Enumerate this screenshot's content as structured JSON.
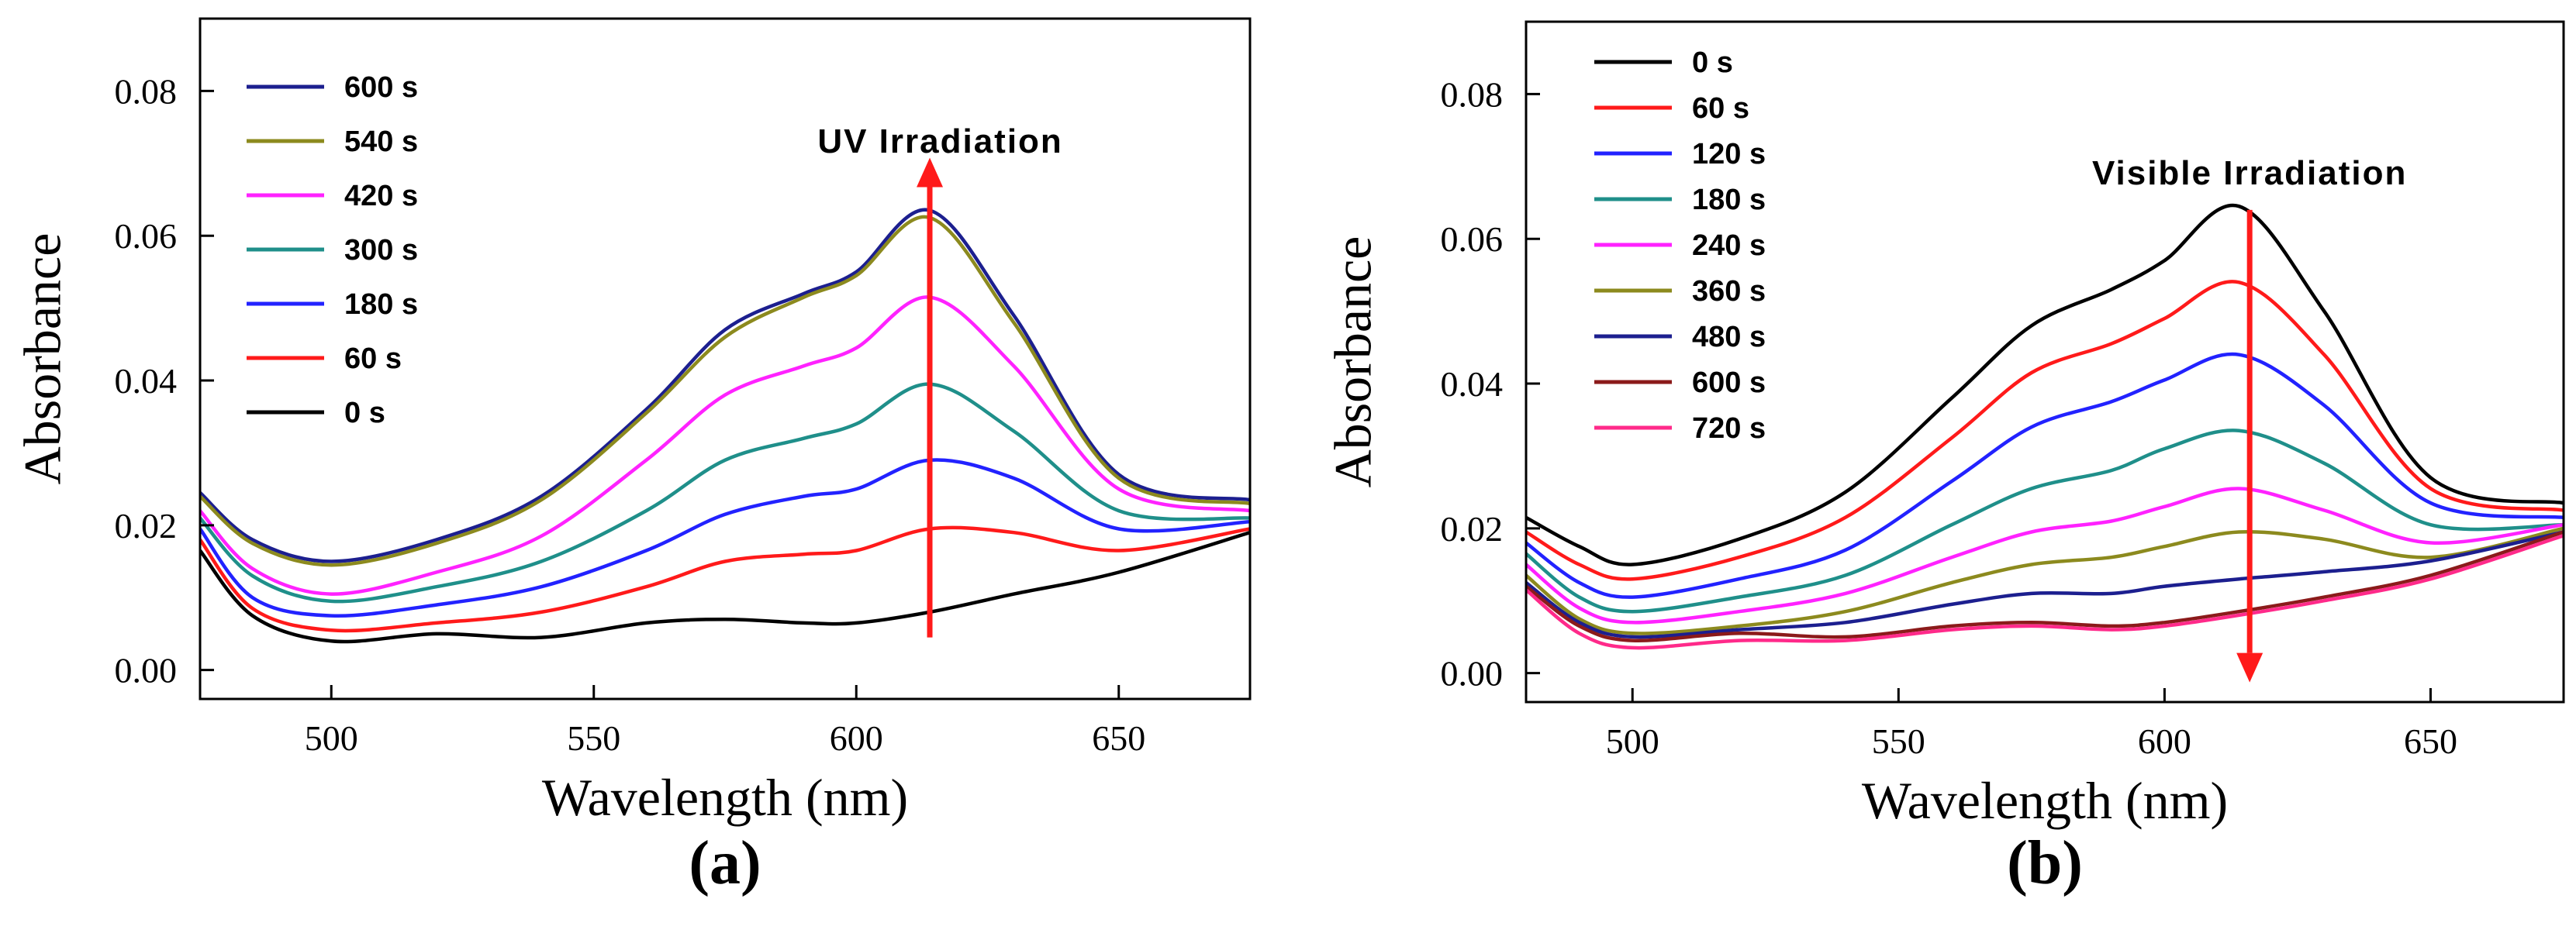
{
  "chart_data": [
    {
      "type": "line",
      "panel_label": "(a)",
      "xlabel": "Wavelength (nm)",
      "ylabel": "Absorbance",
      "xlim": [
        475,
        675
      ],
      "ylim": [
        -0.004,
        0.09
      ],
      "xticks": [
        500,
        550,
        600,
        650
      ],
      "xtick_labels": [
        "500",
        "550",
        "600",
        "650"
      ],
      "yticks": [
        0.0,
        0.02,
        0.04,
        0.06,
        0.08
      ],
      "ytick_labels": [
        "0.00",
        "0.02",
        "0.04",
        "0.06",
        "0.08"
      ],
      "legend_position": "top-left",
      "annotation": {
        "text": "UV Irradiation",
        "arrow_direction": "up",
        "arrow_x": 614,
        "arrow_from": 0.0045,
        "arrow_to": 0.0695,
        "text_x": 616,
        "text_y": 0.0715
      },
      "x": [
        475,
        485,
        500,
        520,
        540,
        560,
        575,
        590,
        600,
        614,
        630,
        650,
        675
      ],
      "series": [
        {
          "name": "600 s",
          "color": "#1c1f8f",
          "values": [
            0.0245,
            0.018,
            0.015,
            0.018,
            0.024,
            0.036,
            0.047,
            0.052,
            0.055,
            0.0635,
            0.049,
            0.027,
            0.0235
          ]
        },
        {
          "name": "540 s",
          "color": "#8c8a1e",
          "values": [
            0.024,
            0.0175,
            0.0145,
            0.0175,
            0.0235,
            0.0355,
            0.046,
            0.0515,
            0.0545,
            0.0625,
            0.048,
            0.0265,
            0.023
          ]
        },
        {
          "name": "420 s",
          "color": "#ff22ff",
          "values": [
            0.022,
            0.014,
            0.0105,
            0.0135,
            0.0185,
            0.029,
            0.038,
            0.042,
            0.0445,
            0.0515,
            0.042,
            0.025,
            0.022
          ]
        },
        {
          "name": "300 s",
          "color": "#1f8f8a",
          "values": [
            0.021,
            0.013,
            0.0095,
            0.0115,
            0.015,
            0.022,
            0.029,
            0.032,
            0.034,
            0.0395,
            0.033,
            0.022,
            0.021
          ]
        },
        {
          "name": "180 s",
          "color": "#2222ff",
          "values": [
            0.0195,
            0.01,
            0.0075,
            0.009,
            0.0115,
            0.0165,
            0.0215,
            0.024,
            0.025,
            0.029,
            0.0265,
            0.0195,
            0.0205
          ]
        },
        {
          "name": "60 s",
          "color": "#ff1a1a",
          "values": [
            0.018,
            0.0085,
            0.0055,
            0.0065,
            0.008,
            0.0115,
            0.015,
            0.016,
            0.0165,
            0.0195,
            0.019,
            0.0165,
            0.0195
          ]
        },
        {
          "name": "0 s",
          "color": "#000000",
          "values": [
            0.0165,
            0.0075,
            0.004,
            0.005,
            0.0045,
            0.0065,
            0.007,
            0.0065,
            0.0065,
            0.008,
            0.0105,
            0.0135,
            0.019
          ]
        }
      ]
    },
    {
      "type": "line",
      "panel_label": "(b)",
      "xlabel": "Wavelength (nm)",
      "ylabel": "Absorbance",
      "xlim": [
        480,
        675
      ],
      "ylim": [
        -0.004,
        0.09
      ],
      "xticks": [
        500,
        550,
        600,
        650
      ],
      "xtick_labels": [
        "500",
        "550",
        "600",
        "650"
      ],
      "yticks": [
        0.0,
        0.02,
        0.04,
        0.06,
        0.08
      ],
      "ytick_labels": [
        "0.00",
        "0.02",
        "0.04",
        "0.06",
        "0.08"
      ],
      "legend_position": "top-left",
      "annotation": {
        "text": "Visible Irradiation",
        "arrow_direction": "down",
        "arrow_x": 616,
        "arrow_from": 0.064,
        "arrow_to": 0.0,
        "text_x": 616,
        "text_y": 0.0675
      },
      "x": [
        480,
        490,
        500,
        520,
        540,
        560,
        575,
        590,
        600,
        614,
        630,
        650,
        675
      ],
      "series": [
        {
          "name": "0 s",
          "color": "#000000",
          "values": [
            0.0215,
            0.0175,
            0.015,
            0.0185,
            0.025,
            0.038,
            0.048,
            0.053,
            0.057,
            0.0645,
            0.05,
            0.027,
            0.0235
          ]
        },
        {
          "name": "60 s",
          "color": "#ff1a1a",
          "values": [
            0.0195,
            0.015,
            0.013,
            0.016,
            0.0215,
            0.0325,
            0.0415,
            0.0455,
            0.049,
            0.054,
            0.044,
            0.0255,
            0.0225
          ]
        },
        {
          "name": "120 s",
          "color": "#2222ff",
          "values": [
            0.018,
            0.0125,
            0.0105,
            0.013,
            0.017,
            0.0265,
            0.034,
            0.0375,
            0.0405,
            0.044,
            0.037,
            0.0235,
            0.0215
          ]
        },
        {
          "name": "180 s",
          "color": "#1f8f8a",
          "values": [
            0.0165,
            0.0105,
            0.0085,
            0.0105,
            0.0135,
            0.0205,
            0.0255,
            0.028,
            0.031,
            0.0335,
            0.029,
            0.0205,
            0.0205
          ]
        },
        {
          "name": "240 s",
          "color": "#ff22ff",
          "values": [
            0.015,
            0.009,
            0.007,
            0.0085,
            0.011,
            0.016,
            0.0195,
            0.021,
            0.023,
            0.0255,
            0.0225,
            0.018,
            0.0205
          ]
        },
        {
          "name": "360 s",
          "color": "#8c8a1e",
          "values": [
            0.0135,
            0.0075,
            0.0055,
            0.0065,
            0.0085,
            0.0125,
            0.015,
            0.016,
            0.0175,
            0.0195,
            0.0185,
            0.016,
            0.02
          ]
        },
        {
          "name": "480 s",
          "color": "#1c1f8f",
          "values": [
            0.0125,
            0.007,
            0.005,
            0.006,
            0.007,
            0.0095,
            0.011,
            0.011,
            0.012,
            0.013,
            0.014,
            0.0155,
            0.0195
          ]
        },
        {
          "name": "600 s",
          "color": "#8b1a1a",
          "values": [
            0.012,
            0.0065,
            0.0045,
            0.0055,
            0.005,
            0.0065,
            0.007,
            0.0065,
            0.007,
            0.0085,
            0.0105,
            0.0135,
            0.0195
          ]
        },
        {
          "name": "720 s",
          "color": "#ff2a8a",
          "values": [
            0.0115,
            0.0055,
            0.0035,
            0.0045,
            0.0045,
            0.006,
            0.0065,
            0.006,
            0.0065,
            0.008,
            0.01,
            0.013,
            0.019
          ]
        }
      ]
    }
  ]
}
